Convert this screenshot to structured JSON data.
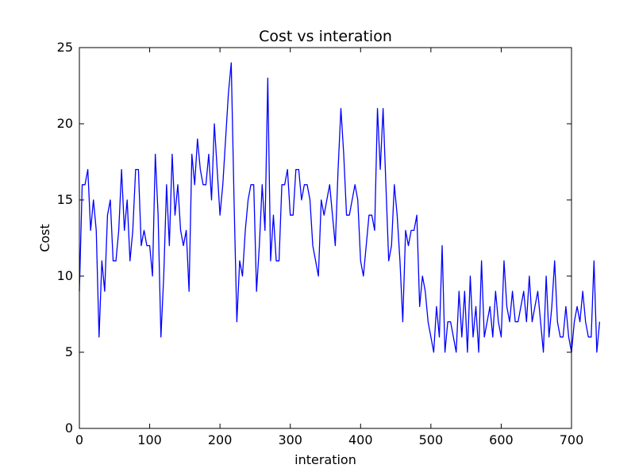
{
  "chart_data": {
    "type": "line",
    "title": "Cost vs interation",
    "xlabel": "interation",
    "ylabel": "Cost",
    "xlim": [
      0,
      700
    ],
    "ylim": [
      0,
      25
    ],
    "xticks": [
      0,
      100,
      200,
      300,
      400,
      500,
      600,
      700
    ],
    "yticks": [
      0,
      5,
      10,
      15,
      20,
      25
    ],
    "grid": false,
    "legend": "none",
    "series": [
      {
        "color": "#0000ff",
        "x_start": 0,
        "x_step": 4,
        "values": [
          9,
          16,
          16,
          17,
          13,
          15,
          13,
          6,
          11,
          9,
          14,
          15,
          11,
          11,
          13,
          17,
          13,
          15,
          11,
          13,
          17,
          17,
          12,
          13,
          12,
          12,
          10,
          18,
          14,
          6,
          10,
          16,
          12,
          18,
          14,
          16,
          13,
          12,
          13,
          9,
          18,
          16,
          19,
          17,
          16,
          16,
          18,
          15,
          20,
          17,
          14,
          16,
          19,
          22,
          24,
          15,
          7,
          11,
          10,
          13,
          15,
          16,
          16,
          9,
          12,
          16,
          13,
          23,
          11,
          14,
          11,
          11,
          16,
          16,
          17,
          14,
          14,
          17,
          17,
          15,
          16,
          16,
          15,
          12,
          11,
          10,
          15,
          14,
          15,
          16,
          14,
          12,
          17,
          21,
          18,
          14,
          14,
          15,
          16,
          15,
          11,
          10,
          12,
          14,
          14,
          13,
          21,
          17,
          21,
          16,
          11,
          12,
          16,
          14,
          11,
          7,
          13,
          12,
          13,
          13,
          14,
          8,
          10,
          9,
          7,
          6,
          5,
          8,
          6,
          12,
          5,
          7,
          7,
          6,
          5,
          9,
          6,
          9,
          5,
          10,
          6,
          8,
          5,
          11,
          6,
          7,
          8,
          6,
          9,
          7,
          6,
          11,
          8,
          7,
          9,
          7,
          7,
          8,
          9,
          7,
          10,
          7,
          8,
          9,
          7,
          5,
          10,
          6,
          8,
          11,
          7,
          6,
          6,
          8,
          6,
          5,
          7,
          8,
          7,
          9,
          7,
          6,
          6,
          11,
          5,
          7
        ]
      }
    ]
  }
}
